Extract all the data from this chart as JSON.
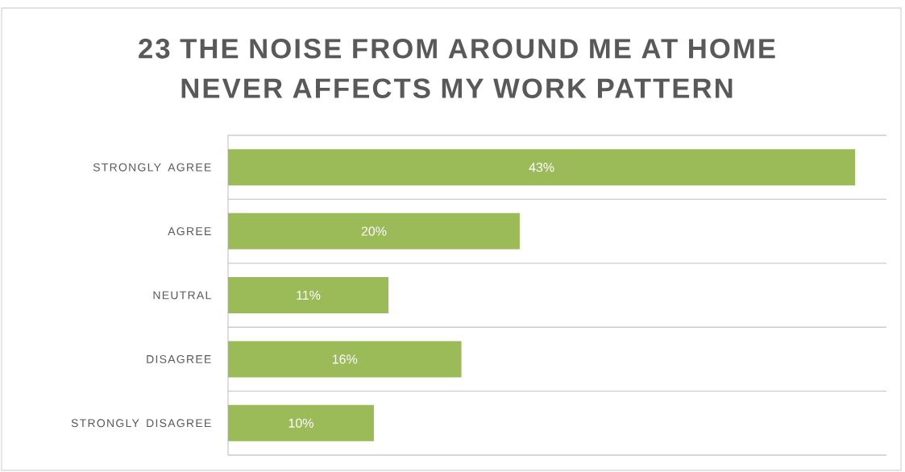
{
  "chart_data": {
    "type": "bar",
    "orientation": "horizontal",
    "title": "23 THE NOISE FROM AROUND ME AT HOME NEVER AFFECTS MY WORK PATTERN",
    "categories": [
      "STRONGLY AGREE",
      "AGREE",
      "NEUTRAL",
      "DISAGREE",
      "STRONGLY DISAGREE"
    ],
    "values": [
      43,
      20,
      11,
      16,
      10
    ],
    "value_labels": [
      "43%",
      "20%",
      "11%",
      "16%",
      "10%"
    ],
    "color": "#9bbb59",
    "grid": "y"
  }
}
